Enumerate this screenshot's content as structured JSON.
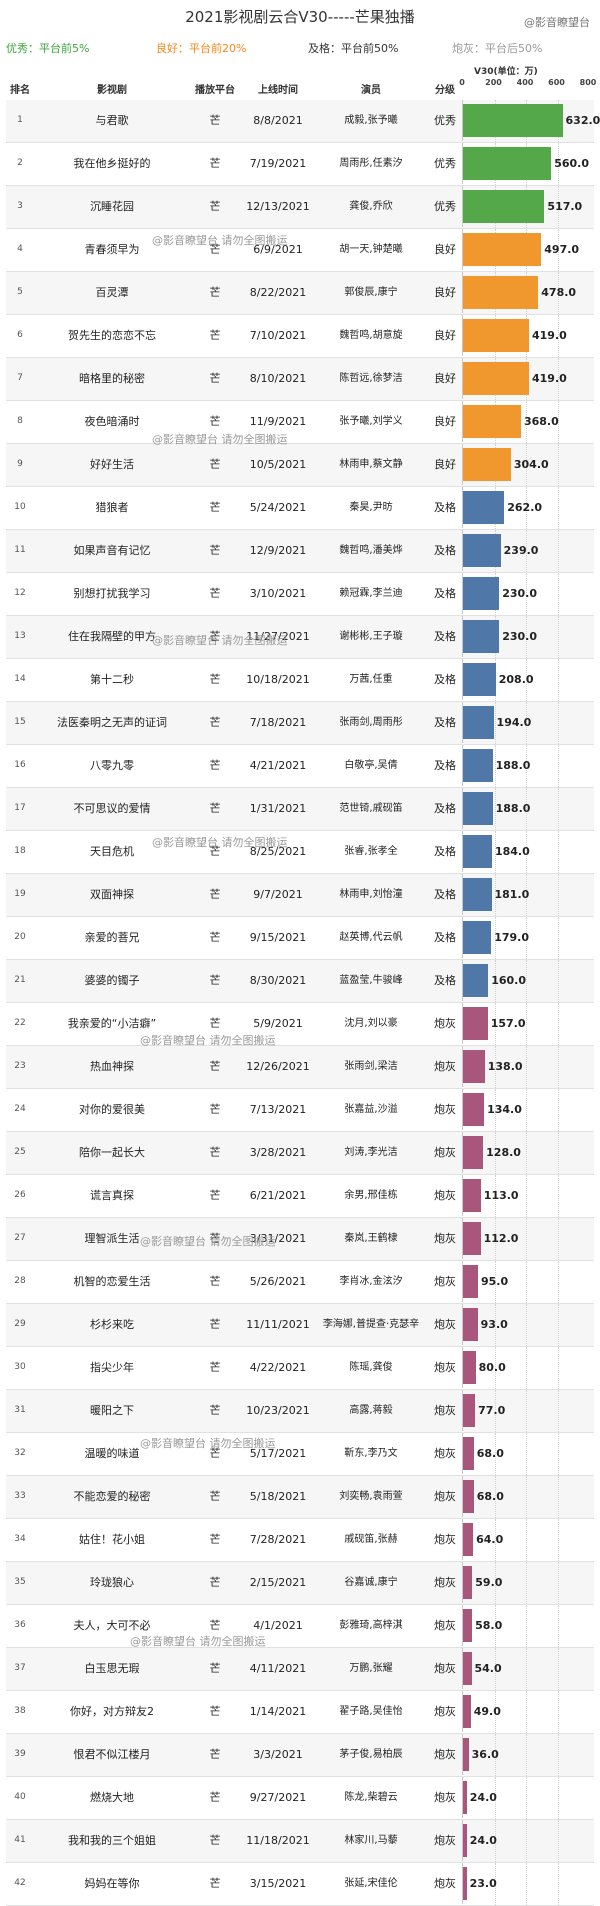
{
  "title": "2021影视剧云合V30-----芒果独播",
  "watermark": "@影音瞭望台",
  "watermark_repost": "@影音瞭望台 请勿全图搬运",
  "legend": [
    {
      "label": "优秀：平台前5%",
      "color": "#3ea53e"
    },
    {
      "label": "良好：平台前20%",
      "color": "#f28a1b"
    },
    {
      "label": "及格：平台前50%",
      "color": "#333333"
    },
    {
      "label": "炮灰：平台后50%",
      "color": "#999999"
    }
  ],
  "headers": {
    "rank": "排名",
    "title": "影视剧",
    "platform": "播放平台",
    "date": "上线时间",
    "actors": "演员",
    "grade": "分级",
    "value": "V30(单位：万)"
  },
  "axis_ticks": [
    "0",
    "200",
    "400",
    "600",
    "800"
  ],
  "grade_colors": {
    "优秀": "#54a84a",
    "良好": "#f0982e",
    "及格": "#4f78a8",
    "炮灰": "#a9567c"
  },
  "chart_data": {
    "type": "bar",
    "title": "2021影视剧云合V30-----芒果独播",
    "xlabel": "V30(单位：万)",
    "xlim": [
      0,
      800
    ],
    "ticks": [
      0,
      200,
      400,
      600,
      800
    ],
    "categories": [
      "与君歌",
      "我在他乡挺好的",
      "沉睡花园",
      "青春须早为",
      "百灵潭",
      "贺先生的恋恋不忘",
      "暗格里的秘密",
      "夜色暗涌时",
      "好好生活",
      "猎狼者",
      "如果声音有记忆",
      "别想打扰我学习",
      "住在我隔壁的甲方",
      "第十二秒",
      "法医秦明之无声的证词",
      "八零九零",
      "不可思议的爱情",
      "天目危机",
      "双面神探",
      "亲爱的菩兄",
      "婆婆的镯子",
      "我亲爱的“小洁癖”",
      "热血神探",
      "对你的爱很美",
      "陪你一起长大",
      "谎言真探",
      "理智派生活",
      "机智的恋爱生活",
      "杉杉来吃",
      "指尖少年",
      "暖阳之下",
      "温暖的味道",
      "不能恋爱的秘密",
      "姑住！花小姐",
      "玲珑狼心",
      "夫人，大可不必",
      "白玉思无瑕",
      "你好，对方辩友2",
      "恨君不似江楼月",
      "燃烧大地",
      "我和我的三个姐姐",
      "妈妈在等你"
    ],
    "values": [
      632.0,
      560.0,
      517.0,
      497.0,
      478.0,
      419.0,
      419.0,
      368.0,
      304.0,
      262.0,
      239.0,
      230.0,
      230.0,
      208.0,
      194.0,
      188.0,
      188.0,
      184.0,
      181.0,
      179.0,
      160.0,
      157.0,
      138.0,
      134.0,
      128.0,
      113.0,
      112.0,
      95.0,
      93.0,
      80.0,
      77.0,
      68.0,
      68.0,
      64.0,
      59.0,
      58.0,
      54.0,
      49.0,
      36.0,
      24.0,
      24.0,
      23.0
    ]
  },
  "rows": [
    {
      "rank": "1",
      "title": "与君歌",
      "platform": "芒",
      "date": "8/8/2021",
      "actors": "成毅,张予曦",
      "grade": "优秀",
      "value": "632.0"
    },
    {
      "rank": "2",
      "title": "我在他乡挺好的",
      "platform": "芒",
      "date": "7/19/2021",
      "actors": "周雨彤,任素汐",
      "grade": "优秀",
      "value": "560.0"
    },
    {
      "rank": "3",
      "title": "沉睡花园",
      "platform": "芒",
      "date": "12/13/2021",
      "actors": "龚俊,乔欣",
      "grade": "优秀",
      "value": "517.0"
    },
    {
      "rank": "4",
      "title": "青春须早为",
      "platform": "芒",
      "date": "6/9/2021",
      "actors": "胡一天,钟楚曦",
      "grade": "良好",
      "value": "497.0"
    },
    {
      "rank": "5",
      "title": "百灵潭",
      "platform": "芒",
      "date": "8/22/2021",
      "actors": "郭俊辰,康宁",
      "grade": "良好",
      "value": "478.0"
    },
    {
      "rank": "6",
      "title": "贺先生的恋恋不忘",
      "platform": "芒",
      "date": "7/10/2021",
      "actors": "魏哲鸣,胡意旋",
      "grade": "良好",
      "value": "419.0"
    },
    {
      "rank": "7",
      "title": "暗格里的秘密",
      "platform": "芒",
      "date": "8/10/2021",
      "actors": "陈哲远,徐梦洁",
      "grade": "良好",
      "value": "419.0"
    },
    {
      "rank": "8",
      "title": "夜色暗涌时",
      "platform": "芒",
      "date": "11/9/2021",
      "actors": "张予曦,刘学义",
      "grade": "良好",
      "value": "368.0"
    },
    {
      "rank": "9",
      "title": "好好生活",
      "platform": "芒",
      "date": "10/5/2021",
      "actors": "林雨申,蔡文静",
      "grade": "良好",
      "value": "304.0"
    },
    {
      "rank": "10",
      "title": "猎狼者",
      "platform": "芒",
      "date": "5/24/2021",
      "actors": "秦昊,尹昉",
      "grade": "及格",
      "value": "262.0"
    },
    {
      "rank": "11",
      "title": "如果声音有记忆",
      "platform": "芒",
      "date": "12/9/2021",
      "actors": "魏哲鸣,潘美烨",
      "grade": "及格",
      "value": "239.0"
    },
    {
      "rank": "12",
      "title": "别想打扰我学习",
      "platform": "芒",
      "date": "3/10/2021",
      "actors": "赖冠霖,李兰迪",
      "grade": "及格",
      "value": "230.0"
    },
    {
      "rank": "13",
      "title": "住在我隔壁的甲方",
      "platform": "芒",
      "date": "11/27/2021",
      "actors": "谢彬彬,王子璇",
      "grade": "及格",
      "value": "230.0"
    },
    {
      "rank": "14",
      "title": "第十二秒",
      "platform": "芒",
      "date": "10/18/2021",
      "actors": "万茜,任重",
      "grade": "及格",
      "value": "208.0"
    },
    {
      "rank": "15",
      "title": "法医秦明之无声的证词",
      "platform": "芒",
      "date": "7/18/2021",
      "actors": "张雨剑,周雨彤",
      "grade": "及格",
      "value": "194.0"
    },
    {
      "rank": "16",
      "title": "八零九零",
      "platform": "芒",
      "date": "4/21/2021",
      "actors": "白敬亭,吴倩",
      "grade": "及格",
      "value": "188.0"
    },
    {
      "rank": "17",
      "title": "不可思议的爱情",
      "platform": "芒",
      "date": "1/31/2021",
      "actors": "范世锜,戚砚笛",
      "grade": "及格",
      "value": "188.0"
    },
    {
      "rank": "18",
      "title": "天目危机",
      "platform": "芒",
      "date": "8/25/2021",
      "actors": "张睿,张孝全",
      "grade": "及格",
      "value": "184.0"
    },
    {
      "rank": "19",
      "title": "双面神探",
      "platform": "芒",
      "date": "9/7/2021",
      "actors": "林雨申,刘怡潼",
      "grade": "及格",
      "value": "181.0"
    },
    {
      "rank": "20",
      "title": "亲爱的菩兄",
      "platform": "芒",
      "date": "9/15/2021",
      "actors": "赵英博,代云帆",
      "grade": "及格",
      "value": "179.0"
    },
    {
      "rank": "21",
      "title": "婆婆的镯子",
      "platform": "芒",
      "date": "8/30/2021",
      "actors": "蓝盈莹,牛骏峰",
      "grade": "及格",
      "value": "160.0"
    },
    {
      "rank": "22",
      "title": "我亲爱的“小洁癖”",
      "platform": "芒",
      "date": "5/9/2021",
      "actors": "沈月,刘以豪",
      "grade": "炮灰",
      "value": "157.0"
    },
    {
      "rank": "23",
      "title": "热血神探",
      "platform": "芒",
      "date": "12/26/2021",
      "actors": "张雨剑,梁洁",
      "grade": "炮灰",
      "value": "138.0"
    },
    {
      "rank": "24",
      "title": "对你的爱很美",
      "platform": "芒",
      "date": "7/13/2021",
      "actors": "张嘉益,沙溢",
      "grade": "炮灰",
      "value": "134.0"
    },
    {
      "rank": "25",
      "title": "陪你一起长大",
      "platform": "芒",
      "date": "3/28/2021",
      "actors": "刘涛,李光洁",
      "grade": "炮灰",
      "value": "128.0"
    },
    {
      "rank": "26",
      "title": "谎言真探",
      "platform": "芒",
      "date": "6/21/2021",
      "actors": "余男,邢佳栋",
      "grade": "炮灰",
      "value": "113.0"
    },
    {
      "rank": "27",
      "title": "理智派生活",
      "platform": "芒",
      "date": "3/31/2021",
      "actors": "秦岚,王鹤棣",
      "grade": "炮灰",
      "value": "112.0"
    },
    {
      "rank": "28",
      "title": "机智的恋爱生活",
      "platform": "芒",
      "date": "5/26/2021",
      "actors": "李肖冰,金泫汐",
      "grade": "炮灰",
      "value": "95.0"
    },
    {
      "rank": "29",
      "title": "杉杉来吃",
      "platform": "芒",
      "date": "11/11/2021",
      "actors": "李海娜,普提查·克瑟辛",
      "grade": "炮灰",
      "value": "93.0"
    },
    {
      "rank": "30",
      "title": "指尖少年",
      "platform": "芒",
      "date": "4/22/2021",
      "actors": "陈瑶,龚俊",
      "grade": "炮灰",
      "value": "80.0"
    },
    {
      "rank": "31",
      "title": "暖阳之下",
      "platform": "芒",
      "date": "10/23/2021",
      "actors": "高露,蒋毅",
      "grade": "炮灰",
      "value": "77.0"
    },
    {
      "rank": "32",
      "title": "温暖的味道",
      "platform": "芒",
      "date": "5/17/2021",
      "actors": "靳东,李乃文",
      "grade": "炮灰",
      "value": "68.0"
    },
    {
      "rank": "33",
      "title": "不能恋爱的秘密",
      "platform": "芒",
      "date": "5/18/2021",
      "actors": "刘奕畅,袁雨萱",
      "grade": "炮灰",
      "value": "68.0"
    },
    {
      "rank": "34",
      "title": "姑住！花小姐",
      "platform": "芒",
      "date": "7/28/2021",
      "actors": "戚砚笛,张赫",
      "grade": "炮灰",
      "value": "64.0"
    },
    {
      "rank": "35",
      "title": "玲珑狼心",
      "platform": "芒",
      "date": "2/15/2021",
      "actors": "谷嘉诚,康宁",
      "grade": "炮灰",
      "value": "59.0"
    },
    {
      "rank": "36",
      "title": "夫人，大可不必",
      "platform": "芒",
      "date": "4/1/2021",
      "actors": "彭雅琦,高梓淇",
      "grade": "炮灰",
      "value": "58.0"
    },
    {
      "rank": "37",
      "title": "白玉思无瑕",
      "platform": "芒",
      "date": "4/11/2021",
      "actors": "万鹏,张耀",
      "grade": "炮灰",
      "value": "54.0"
    },
    {
      "rank": "38",
      "title": "你好，对方辩友2",
      "platform": "芒",
      "date": "1/14/2021",
      "actors": "翟子路,吴佳怡",
      "grade": "炮灰",
      "value": "49.0"
    },
    {
      "rank": "39",
      "title": "恨君不似江楼月",
      "platform": "芒",
      "date": "3/3/2021",
      "actors": "茅子俊,易柏辰",
      "grade": "炮灰",
      "value": "36.0"
    },
    {
      "rank": "40",
      "title": "燃烧大地",
      "platform": "芒",
      "date": "9/27/2021",
      "actors": "陈龙,柴碧云",
      "grade": "炮灰",
      "value": "24.0"
    },
    {
      "rank": "41",
      "title": "我和我的三个姐姐",
      "platform": "芒",
      "date": "11/18/2021",
      "actors": "林家川,马藜",
      "grade": "炮灰",
      "value": "24.0"
    },
    {
      "rank": "42",
      "title": "妈妈在等你",
      "platform": "芒",
      "date": "3/15/2021",
      "actors": "张延,宋佳伦",
      "grade": "炮灰",
      "value": "23.0"
    }
  ]
}
